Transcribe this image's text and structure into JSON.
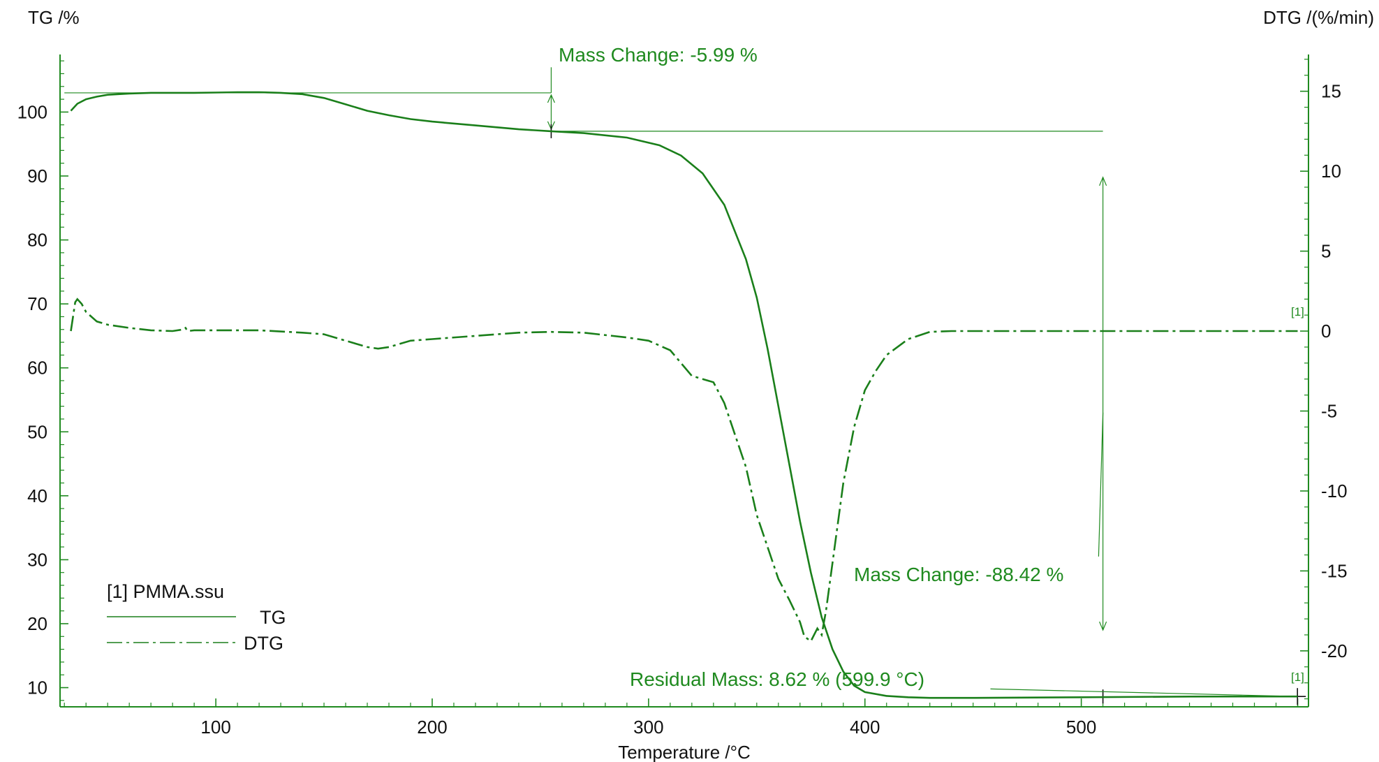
{
  "chart_data": {
    "type": "line",
    "title": "",
    "xlabel": "Temperature /°C",
    "ylabel_left": "TG /%",
    "ylabel_right": "DTG /(%/min)",
    "xlim": [
      28,
      605
    ],
    "ylim_left": [
      7,
      109
    ],
    "ylim_right": [
      -23.5,
      17.3
    ],
    "x_ticks": [
      100,
      200,
      300,
      400,
      500
    ],
    "y_left_ticks": [
      10,
      20,
      30,
      40,
      50,
      60,
      70,
      80,
      90,
      100
    ],
    "y_right_ticks": [
      15,
      10,
      5,
      0,
      -5,
      -10,
      -15,
      -20
    ],
    "grid": false,
    "color": "#1a7f1a",
    "series": [
      {
        "name": "TG",
        "axis": "left",
        "style": "solid",
        "x": [
          33,
          36,
          40,
          45,
          50,
          60,
          70,
          80,
          90,
          100,
          110,
          120,
          130,
          140,
          150,
          160,
          170,
          180,
          190,
          200,
          220,
          240,
          255,
          270,
          290,
          305,
          315,
          325,
          335,
          345,
          350,
          355,
          360,
          365,
          370,
          375,
          380,
          385,
          390,
          395,
          400,
          410,
          420,
          430,
          450,
          500,
          550,
          600
        ],
        "y": [
          100.2,
          101.3,
          102.0,
          102.4,
          102.7,
          102.9,
          103.0,
          103.0,
          103.0,
          103.05,
          103.1,
          103.1,
          103.0,
          102.8,
          102.2,
          101.2,
          100.2,
          99.5,
          98.9,
          98.5,
          97.9,
          97.3,
          97.0,
          96.7,
          96.0,
          94.8,
          93.2,
          90.4,
          85.5,
          77.0,
          71.0,
          63.0,
          54.0,
          45.0,
          36.0,
          28.0,
          21.0,
          16.0,
          12.5,
          10.3,
          9.3,
          8.7,
          8.5,
          8.4,
          8.4,
          8.5,
          8.6,
          8.62
        ]
      },
      {
        "name": "DTG",
        "axis": "right",
        "style": "dash-dot",
        "x": [
          33,
          35,
          36,
          38,
          40,
          45,
          50,
          60,
          70,
          80,
          85,
          86,
          87,
          90,
          100,
          120,
          140,
          150,
          160,
          170,
          175,
          180,
          190,
          200,
          220,
          240,
          255,
          270,
          290,
          300,
          310,
          320,
          330,
          335,
          340,
          345,
          350,
          355,
          360,
          365,
          370,
          372,
          375,
          378,
          380,
          382,
          385,
          390,
          395,
          400,
          405,
          410,
          420,
          430,
          440,
          450,
          480,
          520,
          560,
          600
        ],
        "y": [
          0,
          1.8,
          2.0,
          1.7,
          1.2,
          0.6,
          0.4,
          0.2,
          0.05,
          0,
          0.1,
          0.2,
          0,
          0.05,
          0.05,
          0.05,
          -0.1,
          -0.2,
          -0.6,
          -1.0,
          -1.1,
          -1.0,
          -0.6,
          -0.5,
          -0.3,
          -0.1,
          -0.05,
          -0.1,
          -0.4,
          -0.6,
          -1.2,
          -2.8,
          -3.2,
          -4.5,
          -6.5,
          -8.5,
          -11.5,
          -13.5,
          -15.5,
          -16.8,
          -18.2,
          -19.1,
          -19.4,
          -18.6,
          -19.0,
          -17.5,
          -14.5,
          -9.5,
          -6.0,
          -3.7,
          -2.5,
          -1.5,
          -0.5,
          -0.05,
          0,
          0,
          0,
          0,
          0,
          0
        ]
      }
    ],
    "annotations": [
      {
        "label": "Mass Change: -5.99 %",
        "x_from": 30,
        "x_to": 255,
        "value": -5.99
      },
      {
        "label": "Mass Change: -88.42 %",
        "x_from": 255,
        "x_to": 600,
        "value": -88.42
      },
      {
        "label": "Residual Mass: 8.62 % (599.9 °C)",
        "x": 599.9,
        "value": 8.62
      }
    ],
    "legend": {
      "file": "[1] PMMA.ssu",
      "entries": [
        "TG",
        "DTG"
      ],
      "placement": "bottom-left"
    },
    "curve_tags": [
      "[1]",
      "[1]"
    ]
  }
}
